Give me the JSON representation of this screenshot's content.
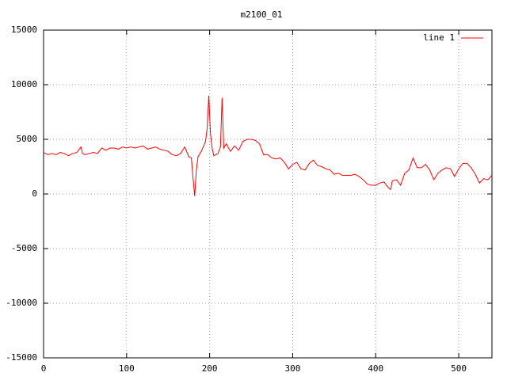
{
  "chart_data": {
    "type": "line",
    "title": "m2100_01",
    "x": [
      0,
      5,
      10,
      15,
      20,
      25,
      30,
      35,
      40,
      45,
      47,
      50,
      55,
      60,
      65,
      70,
      75,
      80,
      85,
      90,
      95,
      100,
      105,
      110,
      115,
      120,
      125,
      130,
      135,
      140,
      145,
      150,
      155,
      160,
      165,
      170,
      175,
      178,
      180,
      182,
      184,
      186,
      190,
      195,
      197,
      199,
      201,
      203,
      205,
      210,
      213,
      215,
      217,
      220,
      225,
      230,
      235,
      240,
      245,
      250,
      255,
      260,
      265,
      270,
      275,
      280,
      285,
      290,
      295,
      300,
      305,
      310,
      315,
      320,
      325,
      330,
      335,
      340,
      345,
      350,
      355,
      360,
      365,
      370,
      375,
      380,
      385,
      390,
      395,
      400,
      405,
      410,
      415,
      418,
      420,
      425,
      430,
      435,
      440,
      445,
      450,
      455,
      460,
      465,
      470,
      475,
      480,
      485,
      490,
      495,
      500,
      505,
      510,
      515,
      520,
      525,
      530,
      535,
      540
    ],
    "series": [
      {
        "name": "line 1",
        "color": "#ff0000",
        "values": [
          3800,
          3600,
          3700,
          3600,
          3800,
          3700,
          3500,
          3700,
          3800,
          4300,
          3700,
          3600,
          3700,
          3800,
          3700,
          4200,
          4000,
          4200,
          4200,
          4100,
          4300,
          4200,
          4300,
          4200,
          4300,
          4400,
          4100,
          4200,
          4300,
          4100,
          4000,
          3900,
          3600,
          3500,
          3700,
          4300,
          3400,
          3300,
          1500,
          -200,
          2200,
          3400,
          3900,
          4800,
          6000,
          9000,
          5500,
          4200,
          3500,
          3700,
          4300,
          8800,
          4200,
          4600,
          3900,
          4400,
          4000,
          4800,
          5000,
          5000,
          4900,
          4600,
          3600,
          3600,
          3300,
          3200,
          3300,
          2900,
          2300,
          2700,
          2900,
          2300,
          2200,
          2800,
          3100,
          2600,
          2500,
          2300,
          2200,
          1800,
          1900,
          1700,
          1700,
          1700,
          1800,
          1600,
          1300,
          900,
          800,
          800,
          1000,
          1100,
          600,
          400,
          1200,
          1300,
          800,
          1900,
          2200,
          3300,
          2400,
          2400,
          2700,
          2200,
          1300,
          1900,
          2200,
          2400,
          2300,
          1600,
          2300,
          2800,
          2800,
          2400,
          1800,
          1000,
          1400,
          1300,
          1700
        ]
      }
    ],
    "xlim": [
      0,
      540
    ],
    "xticks": [
      0,
      100,
      200,
      300,
      400,
      500
    ],
    "ylim": [
      -15000,
      15000
    ],
    "yticks": [
      -15000,
      -10000,
      -5000,
      0,
      5000,
      10000,
      15000
    ],
    "grid": true,
    "legend": "top-right"
  }
}
